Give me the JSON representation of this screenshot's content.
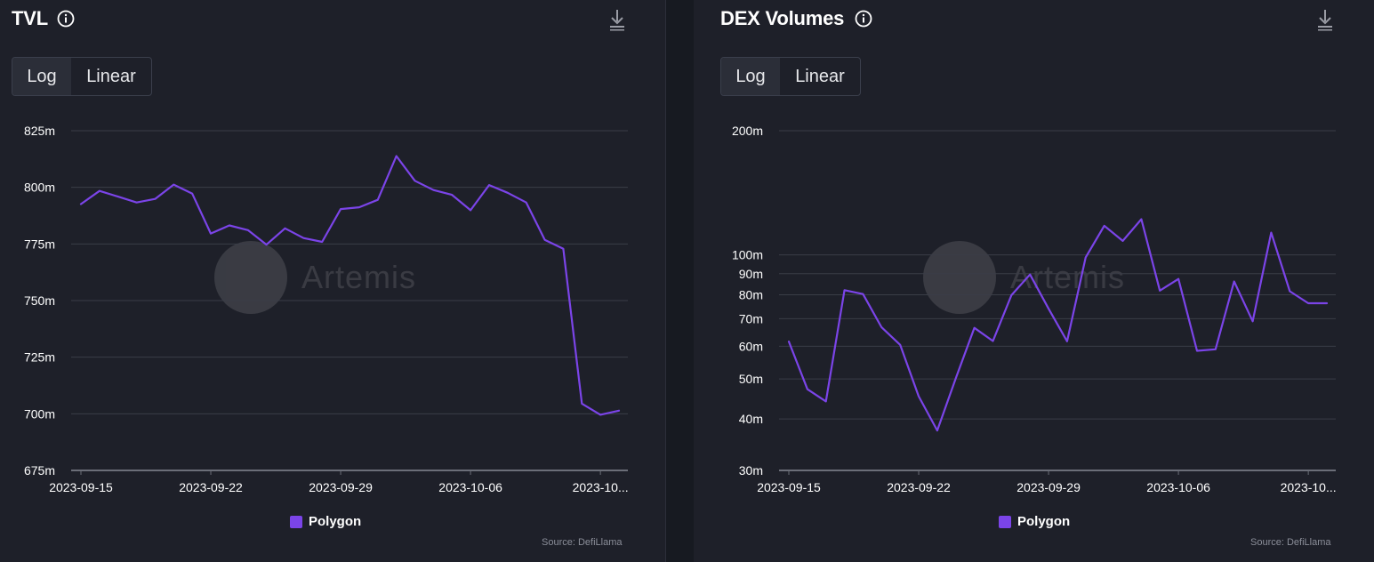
{
  "watermark": "Artemis",
  "colors": {
    "series": "#7b44e8",
    "grid": "#3a3d47",
    "axis": "#6b6e78"
  },
  "chart_data": [
    {
      "type": "line",
      "title": "TVL",
      "scale_options": [
        "Log",
        "Linear"
      ],
      "selected_scale": "Log",
      "y_scale": "linear",
      "yticks": [
        675,
        700,
        725,
        750,
        775,
        800,
        825
      ],
      "ytick_labels": [
        "675m",
        "700m",
        "725m",
        "750m",
        "775m",
        "800m",
        "825m"
      ],
      "ylim": [
        675,
        825
      ],
      "xtick_labels": [
        "2023-09-15",
        "2023-09-22",
        "2023-09-29",
        "2023-10-06",
        "2023-10..."
      ],
      "xtick_index": [
        0,
        7,
        14,
        21,
        28
      ],
      "legend": "Polygon",
      "source": "Source: DefiLlama",
      "series": [
        {
          "name": "Polygon",
          "values": [
            792.6,
            798.4,
            795.9,
            793.3,
            794.9,
            801.2,
            797.2,
            779.6,
            783.2,
            781.1,
            774.7,
            781.9,
            777.6,
            775.9,
            790.4,
            791.2,
            794.5,
            813.8,
            802.9,
            798.8,
            796.7,
            789.9,
            801.0,
            797.6,
            793.3,
            776.8,
            772.9,
            704.5,
            699.6,
            701.4
          ]
        }
      ]
    },
    {
      "type": "line",
      "title": "DEX Volumes",
      "scale_options": [
        "Log",
        "Linear"
      ],
      "selected_scale": "Log",
      "y_scale": "log",
      "yticks": [
        30,
        40,
        50,
        60,
        70,
        80,
        90,
        100,
        200
      ],
      "ytick_labels": [
        "30m",
        "40m",
        "50m",
        "60m",
        "70m",
        "80m",
        "90m",
        "100m",
        "200m"
      ],
      "ylim": [
        30,
        200
      ],
      "xtick_labels": [
        "2023-09-15",
        "2023-09-22",
        "2023-09-29",
        "2023-10-06",
        "2023-10..."
      ],
      "xtick_index": [
        0,
        7,
        14,
        21,
        28
      ],
      "legend": "Polygon",
      "source": "Source: DefiLlama",
      "series": [
        {
          "name": "Polygon",
          "values": [
            61.6,
            47.2,
            44.1,
            82.1,
            80.3,
            66.7,
            60.5,
            45.4,
            37.5,
            50.2,
            66.5,
            61.8,
            79.8,
            89.6,
            74.0,
            61.7,
            98.6,
            117.6,
            108.1,
            122.0,
            81.9,
            87.4,
            58.5,
            59.0,
            86.2,
            69.0,
            113.2,
            81.6,
            76.3,
            76.3
          ]
        }
      ]
    }
  ]
}
